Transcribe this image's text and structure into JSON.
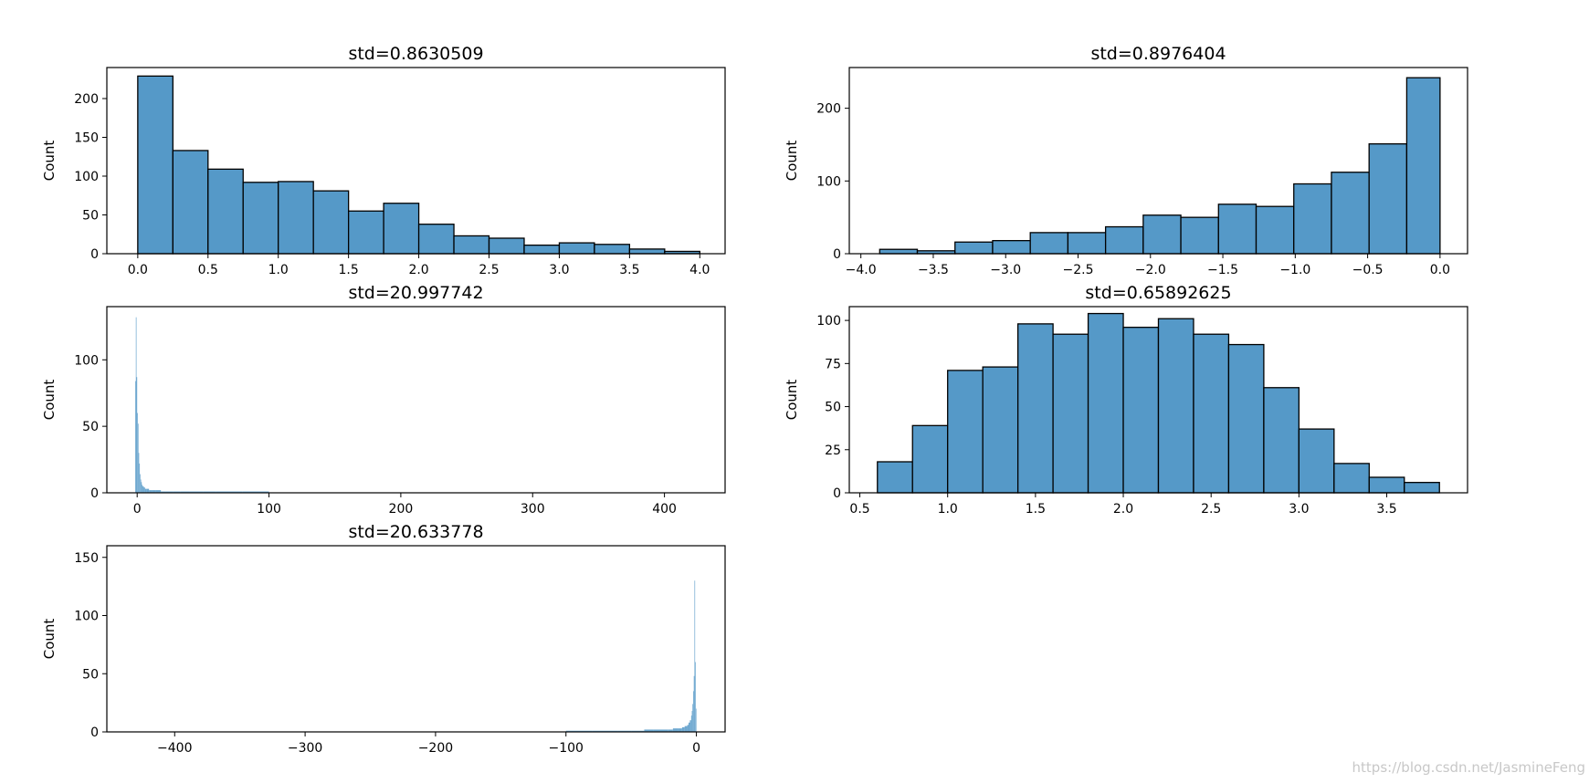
{
  "watermark": "https://blog.csdn.net/JasmineFeng",
  "style": {
    "bar_fill": "#5599c8",
    "bar_edge": "#000000",
    "axes_edge": "#000000",
    "text": "#000000"
  },
  "chart_data": [
    {
      "type": "bar",
      "title": "std=0.8630509",
      "ylabel": "Count",
      "xlim": [
        -0.22,
        4.18
      ],
      "ylim": [
        0,
        240
      ],
      "xticks": [
        0.0,
        0.5,
        1.0,
        1.5,
        2.0,
        2.5,
        3.0,
        3.5,
        4.0
      ],
      "xtick_labels": [
        "0.0",
        "0.5",
        "1.0",
        "1.5",
        "2.0",
        "2.5",
        "3.0",
        "3.5",
        "4.0"
      ],
      "yticks": [
        0,
        50,
        100,
        150,
        200
      ],
      "ytick_labels": [
        "0",
        "50",
        "100",
        "150",
        "200"
      ],
      "bin_edges": [
        0.0,
        0.25,
        0.5,
        0.75,
        1.0,
        1.25,
        1.5,
        1.75,
        2.0,
        2.25,
        2.5,
        2.75,
        3.0,
        3.25,
        3.5,
        3.75,
        4.0
      ],
      "counts": [
        229,
        133,
        109,
        92,
        93,
        81,
        55,
        65,
        38,
        23,
        20,
        11,
        14,
        12,
        6,
        3
      ],
      "edgecolor": true
    },
    {
      "type": "bar",
      "title": "std=0.8976404",
      "ylabel": "Count",
      "xlim": [
        -4.08,
        0.19
      ],
      "ylim": [
        0,
        256
      ],
      "xticks": [
        -4.0,
        -3.5,
        -3.0,
        -2.5,
        -2.0,
        -1.5,
        -1.0,
        -0.5,
        0.0
      ],
      "xtick_labels": [
        "−4.0",
        "−3.5",
        "−3.0",
        "−2.5",
        "−2.0",
        "−1.5",
        "−1.0",
        "−0.5",
        "0.0"
      ],
      "yticks": [
        0,
        100,
        200
      ],
      "ytick_labels": [
        "0",
        "100",
        "200"
      ],
      "bin_edges": [
        -3.87,
        -3.61,
        -3.35,
        -3.09,
        -2.83,
        -2.57,
        -2.31,
        -2.05,
        -1.79,
        -1.53,
        -1.27,
        -1.01,
        -0.75,
        -0.49,
        -0.23,
        0.0
      ],
      "counts": [
        6,
        4,
        16,
        18,
        29,
        29,
        37,
        53,
        50,
        68,
        65,
        96,
        112,
        151,
        242
      ],
      "edgecolor": true
    },
    {
      "type": "bar",
      "title": "std=20.997742",
      "ylabel": "Count",
      "xlim": [
        -23,
        446
      ],
      "ylim": [
        0,
        140
      ],
      "xticks": [
        0,
        100,
        200,
        300,
        400
      ],
      "xtick_labels": [
        "0",
        "100",
        "200",
        "300",
        "400"
      ],
      "yticks": [
        0,
        50,
        100
      ],
      "ytick_labels": [
        "0",
        "50",
        "100"
      ],
      "bin_edges": [
        -1.5,
        -1.0,
        -0.5,
        0.0,
        0.5,
        1.0,
        1.5,
        2.0,
        2.5,
        3.0,
        3.5,
        4.0,
        5.0,
        6.0,
        7.0,
        9.0,
        11.0,
        14.0,
        18.0,
        22.0,
        27.0,
        33.0,
        40.0,
        50.0,
        60.0,
        80.0,
        100.0
      ],
      "counts": [
        84,
        132,
        87,
        60,
        52,
        30,
        22,
        14,
        10,
        8,
        6,
        5,
        4,
        3,
        3,
        2,
        2,
        2,
        1,
        1,
        1,
        1,
        1,
        1,
        1,
        1
      ],
      "edgecolor": false
    },
    {
      "type": "bar",
      "title": "std=0.65892625",
      "ylabel": "Count",
      "xlim": [
        0.44,
        3.96
      ],
      "ylim": [
        0,
        108
      ],
      "xticks": [
        0.5,
        1.0,
        1.5,
        2.0,
        2.5,
        3.0,
        3.5
      ],
      "xtick_labels": [
        "0.5",
        "1.0",
        "1.5",
        "2.0",
        "2.5",
        "3.0",
        "3.5"
      ],
      "yticks": [
        0,
        25,
        50,
        75,
        100
      ],
      "ytick_labels": [
        "0",
        "25",
        "50",
        "75",
        "100"
      ],
      "bin_edges": [
        0.6,
        0.8,
        1.0,
        1.2,
        1.4,
        1.6,
        1.8,
        2.0,
        2.2,
        2.4,
        2.6,
        2.8,
        3.0,
        3.2,
        3.4,
        3.6,
        3.8
      ],
      "counts": [
        18,
        39,
        71,
        73,
        98,
        92,
        104,
        96,
        101,
        92,
        86,
        61,
        37,
        17,
        9,
        6
      ],
      "edgecolor": true
    },
    {
      "type": "bar",
      "title": "std=20.633778",
      "ylabel": "Count",
      "xlim": [
        -452,
        22
      ],
      "ylim": [
        0,
        160
      ],
      "xticks": [
        -400,
        -300,
        -200,
        -100,
        0
      ],
      "xtick_labels": [
        "−400",
        "−300",
        "−200",
        "−100",
        "0"
      ],
      "yticks": [
        0,
        50,
        100,
        150
      ],
      "ytick_labels": [
        "0",
        "50",
        "100",
        "150"
      ],
      "bin_edges": [
        -100.0,
        -80.0,
        -60.0,
        -50.0,
        -40.0,
        -33.0,
        -27.0,
        -22.0,
        -18.0,
        -14.0,
        -11.0,
        -9.0,
        -7.0,
        -6.0,
        -5.0,
        -4.0,
        -3.5,
        -3.0,
        -2.5,
        -2.0,
        -1.5,
        -1.0,
        -0.5,
        0.0
      ],
      "counts": [
        1,
        1,
        1,
        1,
        2,
        2,
        2,
        2,
        3,
        3,
        4,
        5,
        6,
        8,
        10,
        14,
        18,
        24,
        35,
        48,
        130,
        60,
        20
      ],
      "edgecolor": false
    }
  ]
}
